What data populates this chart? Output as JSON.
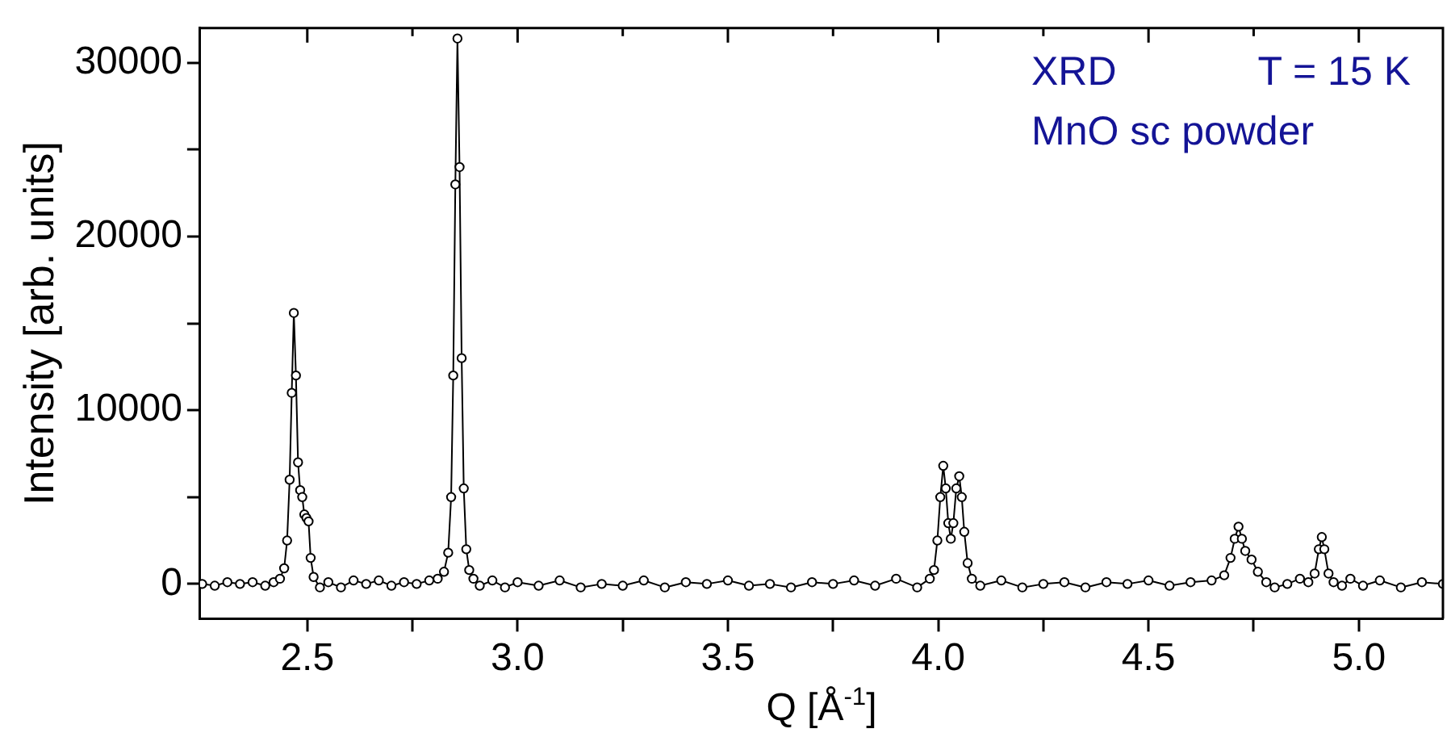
{
  "chart_data": {
    "type": "line",
    "xlabel": "Q [Å$^{-1}$]",
    "ylabel": "Intensity [arb. units]",
    "annotations": [
      "XRD",
      "T = 15 K",
      "MnO sc powder"
    ],
    "xlim": [
      2.245,
      5.2
    ],
    "xticks": [
      2.5,
      {
        "value": 2.75,
        "label": null
      },
      {
        "value": 3,
        "label": "3.0"
      },
      {
        "value": 3.25,
        "label": null
      },
      3.5,
      {
        "value": 3.75,
        "label": null
      },
      {
        "value": 4,
        "label": "4.0"
      },
      {
        "value": 4.25,
        "label": null
      },
      4.5,
      {
        "value": 4.75,
        "label": null
      },
      {
        "value": 5,
        "label": "5.0"
      }
    ],
    "ylim": [
      -2000,
      32000
    ],
    "yticks": [
      0,
      {
        "value": 5000,
        "label": null
      },
      10000,
      {
        "value": 15000,
        "label": null
      },
      20000,
      {
        "value": 25000,
        "label": null
      },
      30000
    ],
    "grid": false,
    "legend": false,
    "marker": "circle",
    "line_style": "solid",
    "series": [
      {
        "color": "#000000",
        "x": [
          2.25,
          2.28,
          2.31,
          2.34,
          2.37,
          2.4,
          2.42,
          2.435,
          2.445,
          2.452,
          2.458,
          2.463,
          2.468,
          2.473,
          2.478,
          2.483,
          2.488,
          2.493,
          2.498,
          2.503,
          2.508,
          2.515,
          2.53,
          2.55,
          2.58,
          2.61,
          2.64,
          2.67,
          2.7,
          2.73,
          2.76,
          2.79,
          2.81,
          2.825,
          2.835,
          2.842,
          2.847,
          2.852,
          2.857,
          2.862,
          2.867,
          2.872,
          2.878,
          2.885,
          2.895,
          2.91,
          2.94,
          2.97,
          3.0,
          3.05,
          3.1,
          3.15,
          3.2,
          3.25,
          3.3,
          3.35,
          3.4,
          3.45,
          3.5,
          3.55,
          3.6,
          3.65,
          3.7,
          3.75,
          3.8,
          3.85,
          3.9,
          3.95,
          3.98,
          3.99,
          3.998,
          4.005,
          4.012,
          4.018,
          4.024,
          4.03,
          4.036,
          4.043,
          4.05,
          4.056,
          4.062,
          4.07,
          4.08,
          4.1,
          4.15,
          4.2,
          4.25,
          4.3,
          4.35,
          4.4,
          4.45,
          4.5,
          4.55,
          4.6,
          4.65,
          4.68,
          4.695,
          4.705,
          4.714,
          4.722,
          4.73,
          4.745,
          4.76,
          4.78,
          4.8,
          4.83,
          4.86,
          4.88,
          4.895,
          4.905,
          4.912,
          4.918,
          4.928,
          4.94,
          4.96,
          4.98,
          5.01,
          5.05,
          5.1,
          5.15,
          5.2
        ],
        "values": [
          0,
          -100,
          100,
          0,
          100,
          -100,
          100,
          300,
          900,
          2500,
          6000,
          11000,
          15600,
          12000,
          7000,
          5400,
          5000,
          4000,
          3800,
          3600,
          1500,
          400,
          -200,
          100,
          -200,
          200,
          0,
          200,
          -100,
          100,
          0,
          200,
          300,
          700,
          1800,
          5000,
          12000,
          23000,
          31400,
          24000,
          13000,
          5500,
          2000,
          800,
          300,
          -100,
          200,
          -200,
          100,
          -100,
          200,
          -200,
          0,
          -100,
          200,
          -200,
          100,
          0,
          200,
          -100,
          0,
          -200,
          100,
          0,
          200,
          -100,
          300,
          -200,
          300,
          800,
          2500,
          5000,
          6800,
          5500,
          3500,
          2600,
          3500,
          5500,
          6200,
          5000,
          3000,
          1200,
          300,
          -100,
          200,
          -200,
          0,
          100,
          -200,
          100,
          0,
          200,
          -100,
          100,
          200,
          500,
          1500,
          2600,
          3300,
          2600,
          1900,
          1400,
          700,
          100,
          -200,
          0,
          300,
          100,
          600,
          2000,
          2700,
          2000,
          600,
          100,
          -100,
          300,
          -100,
          200,
          -200,
          100,
          0
        ]
      }
    ]
  }
}
